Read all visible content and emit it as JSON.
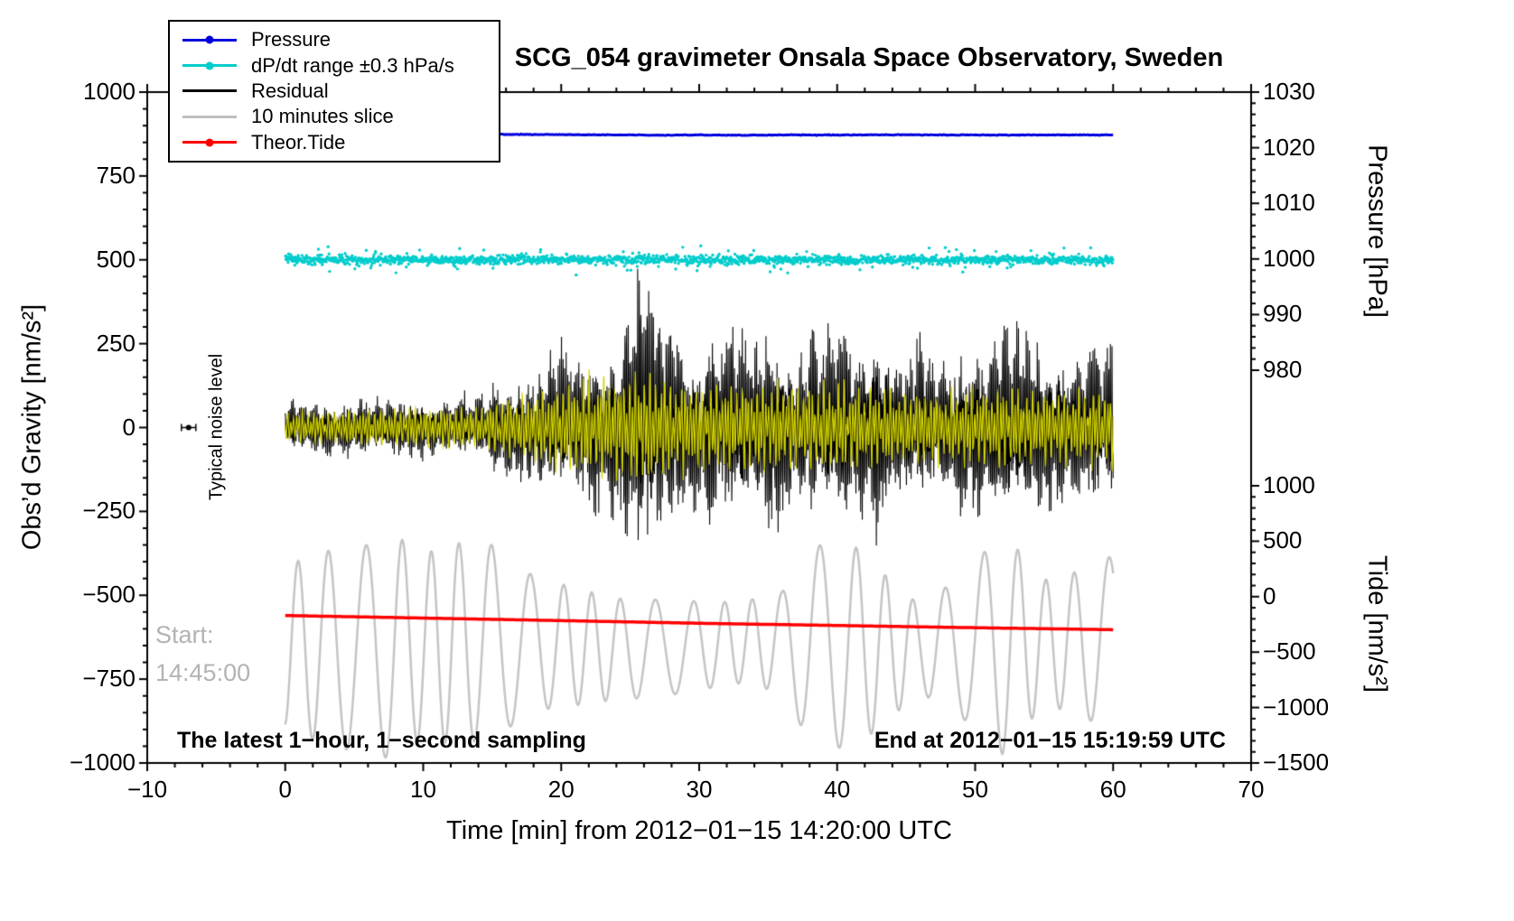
{
  "chart_data": {
    "type": "line",
    "title": "SCG_054 gravimeter Onsala Space Observatory, Sweden",
    "xlabel": "Time [min] from 2012−01−15 14:20:00 UTC",
    "x_axis": {
      "range": [
        -10,
        70
      ],
      "major_ticks": [
        -10,
        0,
        10,
        20,
        30,
        40,
        50,
        60,
        70
      ],
      "minor_step": 2
    },
    "left_axis": {
      "label": "Obs’d Gravity [nm/s²]",
      "range": [
        -1000,
        1000
      ],
      "major_ticks": [
        1000,
        750,
        500,
        250,
        0,
        -250,
        -500,
        -750,
        -1000
      ],
      "minor_step": 50
    },
    "pressure_axis": {
      "label": "Pressure [hPa]",
      "major_ticks": [
        1030,
        1020,
        1010,
        1000,
        990,
        980
      ],
      "minor_step": 2
    },
    "tide_axis": {
      "label": "Tide [nm/s²]",
      "major_ticks": [
        1000,
        500,
        0,
        -500,
        -1000,
        -1500
      ],
      "minor_step": 100
    },
    "grid": false,
    "legend_position": "top-left",
    "legend": [
      {
        "label": "Pressure",
        "color": "#0000dd",
        "marker": true
      },
      {
        "label": "dP/dt range ±0.3 hPa/s",
        "color": "#00cccc",
        "marker": true
      },
      {
        "label": "Residual",
        "color": "#000000",
        "marker": false
      },
      {
        "label": "10 minutes slice",
        "color": "#bfbfbf",
        "marker": false
      },
      {
        "label": "Theor.Tide",
        "color": "#ff0000",
        "marker": true
      }
    ],
    "annotations": {
      "noise_label": "Typical noise level",
      "noise_marker": {
        "x": -7,
        "gravity": 0
      },
      "start_label": "Start:",
      "start_time": "14:45:00",
      "bottom_left": "The latest 1−hour, 1−second sampling",
      "bottom_right": "End at 2012−01−15 15:19:59 UTC"
    },
    "series": {
      "pressure": {
        "name": "Pressure",
        "color": "#0000dd",
        "axis": "pressure",
        "x_range": [
          0,
          60
        ],
        "control_points": [
          [
            0,
            1022.3
          ],
          [
            5,
            1022.34
          ],
          [
            10,
            1022.4
          ],
          [
            13,
            1022.44
          ],
          [
            16,
            1022.4
          ],
          [
            20,
            1022.34
          ],
          [
            24,
            1022.3
          ],
          [
            27,
            1022.26
          ],
          [
            30,
            1022.3
          ],
          [
            33,
            1022.22
          ],
          [
            36,
            1022.3
          ],
          [
            40,
            1022.28
          ],
          [
            44,
            1022.32
          ],
          [
            48,
            1022.3
          ],
          [
            52,
            1022.28
          ],
          [
            56,
            1022.3
          ],
          [
            60,
            1022.3
          ]
        ]
      },
      "dpdt": {
        "name": "dP/dt range ±0.3 hPa/s",
        "color": "#00cccc",
        "axis": "gravity",
        "x_range": [
          0,
          60
        ],
        "center": 500,
        "sigma": 6.5,
        "outlier_rate": 0.05
      },
      "residual": {
        "name": "Residual",
        "color": "#000000",
        "axis": "gravity",
        "x_range": [
          0,
          60
        ],
        "envelope": [
          [
            0,
            75
          ],
          [
            4,
            80
          ],
          [
            8,
            88
          ],
          [
            12,
            80
          ],
          [
            14,
            95
          ],
          [
            15,
            130
          ],
          [
            16,
            145
          ],
          [
            17,
            165
          ],
          [
            18,
            150
          ],
          [
            19,
            205
          ],
          [
            20,
            235
          ],
          [
            21,
            210
          ],
          [
            22,
            255
          ],
          [
            23,
            235
          ],
          [
            24,
            285
          ],
          [
            25,
            380
          ],
          [
            26,
            470
          ],
          [
            27,
            370
          ],
          [
            28,
            330
          ],
          [
            29,
            245
          ],
          [
            30,
            225
          ],
          [
            31,
            315
          ],
          [
            32,
            265
          ],
          [
            33,
            340
          ],
          [
            34,
            245
          ],
          [
            35,
            330
          ],
          [
            36,
            265
          ],
          [
            37,
            215
          ],
          [
            38,
            305
          ],
          [
            39,
            265
          ],
          [
            40,
            335
          ],
          [
            41,
            305
          ],
          [
            42,
            255
          ],
          [
            43,
            320
          ],
          [
            44,
            235
          ],
          [
            45,
            205
          ],
          [
            46,
            285
          ],
          [
            47,
            185
          ],
          [
            48,
            205
          ],
          [
            49,
            235
          ],
          [
            50,
            245
          ],
          [
            51,
            275
          ],
          [
            52,
            325
          ],
          [
            53,
            305
          ],
          [
            54,
            275
          ],
          [
            55,
            255
          ],
          [
            56,
            235
          ],
          [
            57,
            215
          ],
          [
            58,
            235
          ],
          [
            59,
            255
          ],
          [
            60,
            235
          ]
        ]
      },
      "residual_highlight": {
        "name": "Residual band-pass highlight",
        "color": "#d4d400",
        "axis": "gravity",
        "x_range": [
          0,
          60
        ],
        "envelope": [
          [
            0,
            45
          ],
          [
            5,
            55
          ],
          [
            10,
            60
          ],
          [
            14,
            62
          ],
          [
            16,
            90
          ],
          [
            18,
            110
          ],
          [
            20,
            135
          ],
          [
            22,
            150
          ],
          [
            24,
            165
          ],
          [
            26,
            180
          ],
          [
            28,
            150
          ],
          [
            30,
            130
          ],
          [
            32,
            140
          ],
          [
            34,
            130
          ],
          [
            36,
            140
          ],
          [
            38,
            132
          ],
          [
            40,
            142
          ],
          [
            42,
            130
          ],
          [
            44,
            120
          ],
          [
            46,
            112
          ],
          [
            48,
            112
          ],
          [
            50,
            122
          ],
          [
            52,
            132
          ],
          [
            54,
            122
          ],
          [
            56,
            112
          ],
          [
            58,
            120
          ],
          [
            60,
            120
          ]
        ]
      },
      "slice": {
        "name": "10 minutes slice",
        "color": "#c4c4c4",
        "axis": "gravity",
        "x_range": [
          0,
          60
        ],
        "center": -650,
        "period_min": 2.35,
        "amplitude": [
          [
            0,
            240
          ],
          [
            3,
            290
          ],
          [
            6,
            310
          ],
          [
            8,
            335
          ],
          [
            10,
            270
          ],
          [
            12,
            300
          ],
          [
            15,
            290
          ],
          [
            18,
            200
          ],
          [
            21,
            175
          ],
          [
            24,
            150
          ],
          [
            27,
            145
          ],
          [
            30,
            132
          ],
          [
            33,
            120
          ],
          [
            36,
            150
          ],
          [
            38,
            290
          ],
          [
            41,
            310
          ],
          [
            44,
            200
          ],
          [
            46,
            130
          ],
          [
            49,
            210
          ],
          [
            52,
            330
          ],
          [
            55,
            185
          ],
          [
            58,
            220
          ],
          [
            60,
            270
          ]
        ]
      },
      "tide": {
        "name": "Theor.Tide",
        "color": "#ff0000",
        "axis": "tide",
        "x_range": [
          0,
          60
        ],
        "control_points": [
          [
            0,
            -170
          ],
          [
            10,
            -193
          ],
          [
            20,
            -216
          ],
          [
            30,
            -240
          ],
          [
            40,
            -260
          ],
          [
            50,
            -280
          ],
          [
            60,
            -298
          ]
        ]
      }
    }
  }
}
